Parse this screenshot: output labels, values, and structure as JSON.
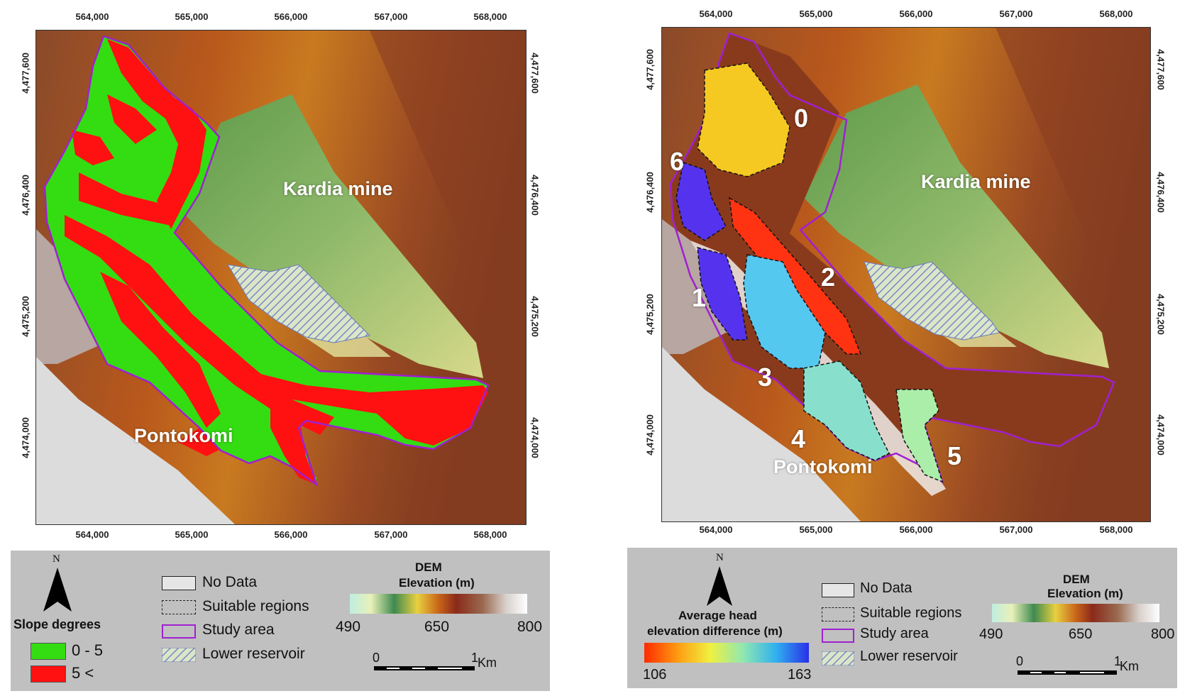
{
  "left_map": {
    "x_ticks": [
      "564,000",
      "565,000",
      "566,000",
      "567,000",
      "568,000"
    ],
    "y_ticks": [
      "4,477,600",
      "4,476,400",
      "4,475,200",
      "4,474,000"
    ],
    "labels": {
      "mine": "Kardia mine",
      "village": "Pontokomi"
    },
    "legend": {
      "north": "N",
      "slope_title": "Slope degrees",
      "classes": [
        {
          "label": "0 - 5",
          "color": "#33dd11"
        },
        {
          "label": "5 <",
          "color": "#ff1111"
        }
      ],
      "items": {
        "no_data": "No Data",
        "suitable": "Suitable regions",
        "study": "Study area",
        "lower": "Lower reservoir"
      },
      "dem_title": "DEM",
      "dem_subtitle": "Elevation (m)",
      "dem_min": "490",
      "dem_mid": "650",
      "dem_max": "800",
      "scale_zero": "0",
      "scale_one": "1",
      "scale_unit": "Km"
    }
  },
  "right_map": {
    "x_ticks": [
      "564,000",
      "565,000",
      "566,000",
      "567,000",
      "568,000"
    ],
    "y_ticks": [
      "4,477,600",
      "4,476,400",
      "4,475,200",
      "4,474,000"
    ],
    "labels": {
      "mine": "Kardia mine",
      "village": "Pontokomi"
    },
    "regions": [
      {
        "id": "0",
        "color": "#f5c922"
      },
      {
        "id": "1",
        "color": "#5533ee"
      },
      {
        "id": "2",
        "color": "#ff3311"
      },
      {
        "id": "3",
        "color": "#55c8f0"
      },
      {
        "id": "4",
        "color": "#88e0cc"
      },
      {
        "id": "5",
        "color": "#aaeeaa"
      },
      {
        "id": "6",
        "color": "#5533ee"
      }
    ],
    "legend": {
      "north": "N",
      "head_title_1": "Average head",
      "head_title_2": "elevation difference (m)",
      "head_min": "106",
      "head_max": "163",
      "items": {
        "no_data": "No Data",
        "suitable": "Suitable regions",
        "study": "Study area",
        "lower": "Lower reservoir"
      },
      "dem_title": "DEM",
      "dem_subtitle": "Elevation (m)",
      "dem_min": "490",
      "dem_mid": "650",
      "dem_max": "800",
      "scale_zero": "0",
      "scale_one": "1",
      "scale_unit": "Km"
    }
  },
  "colors": {
    "study_outline": "#a020d0",
    "legend_bg": "#c0c0c0",
    "no_data": "#dcdcdc"
  }
}
